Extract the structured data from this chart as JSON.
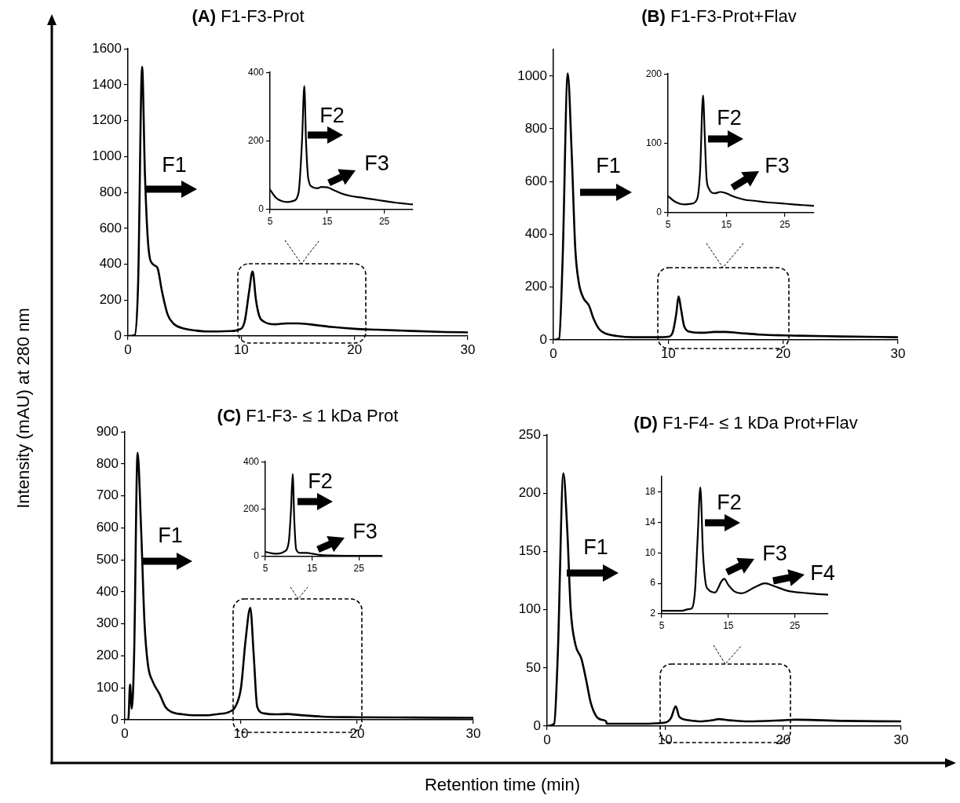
{
  "chart_data": [
    {
      "type": "line",
      "title": "(A) F1-F3-Prot",
      "xlabel": "Retention time (min)",
      "ylabel": "Intensity (mAU) at 280 nm",
      "marker": "none",
      "line_style": "solid",
      "xlim": [
        0,
        30
      ],
      "xticks": [
        0,
        10,
        20,
        30
      ],
      "ylim": [
        0,
        1600
      ],
      "yticks": [
        0,
        200,
        400,
        600,
        800,
        1000,
        1200,
        1400,
        1600
      ],
      "annotations": [
        "F1"
      ],
      "series": [
        {
          "color": "#000000",
          "x": [
            0,
            0.6,
            0.9,
            1.25,
            1.5,
            1.8,
            2.2,
            2.6,
            3,
            3.5,
            4,
            5,
            6,
            7,
            8,
            9,
            9.8,
            10.3,
            10.7,
            11,
            11.3,
            11.6,
            12,
            13,
            14,
            15,
            16,
            18,
            20,
            22,
            25,
            28,
            30
          ],
          "values": [
            0,
            5,
            300,
            1500,
            900,
            500,
            400,
            380,
            250,
            120,
            70,
            40,
            30,
            25,
            25,
            27,
            35,
            80,
            250,
            360,
            200,
            110,
            80,
            65,
            70,
            70,
            65,
            50,
            40,
            35,
            28,
            22,
            20
          ]
        }
      ]
    },
    {
      "type": "line",
      "marker": "none",
      "line_style": "solid",
      "xlim": [
        5,
        30
      ],
      "xticks": [
        5,
        15,
        25
      ],
      "ylim": [
        0,
        400
      ],
      "yticks": [
        0,
        200,
        400
      ],
      "annotations": [
        "F2",
        "F3"
      ],
      "series": [
        {
          "color": "#000000",
          "x": [
            5,
            6,
            7,
            8,
            9,
            10,
            10.6,
            11,
            11.3,
            11.7,
            12.5,
            13.3,
            14,
            15,
            16,
            17.5,
            19,
            21,
            23,
            25,
            27,
            30
          ],
          "values": [
            58,
            35,
            25,
            22,
            25,
            50,
            200,
            360,
            200,
            90,
            65,
            62,
            66,
            65,
            58,
            47,
            40,
            35,
            30,
            25,
            20,
            15
          ]
        }
      ]
    },
    {
      "type": "line",
      "title": "(B) F1-F3-Prot+Flav",
      "marker": "none",
      "line_style": "solid",
      "xlim": [
        0,
        30
      ],
      "xticks": [
        0,
        10,
        20,
        30
      ],
      "ylim": [
        0,
        1100
      ],
      "yticks": [
        0,
        200,
        400,
        600,
        800,
        1000
      ],
      "annotations": [
        "F1"
      ],
      "series": [
        {
          "color": "#000000",
          "x": [
            0,
            0.5,
            0.8,
            1.25,
            1.6,
            1.9,
            2.2,
            2.6,
            3.1,
            3.5,
            4,
            4.5,
            5.5,
            7,
            9,
            10,
            10.4,
            10.7,
            10.9,
            11.1,
            11.4,
            12,
            13,
            14,
            15,
            16,
            18,
            20,
            25,
            30
          ],
          "values": [
            0,
            5,
            300,
            1010,
            700,
            350,
            220,
            160,
            130,
            80,
            40,
            25,
            15,
            10,
            10,
            12,
            30,
            100,
            165,
            120,
            50,
            30,
            27,
            30,
            30,
            27,
            20,
            17,
            13,
            10
          ]
        }
      ]
    },
    {
      "type": "line",
      "marker": "none",
      "line_style": "solid",
      "xlim": [
        5,
        30
      ],
      "xticks": [
        5,
        15,
        25
      ],
      "ylim": [
        0,
        200
      ],
      "yticks": [
        0,
        100,
        200
      ],
      "annotations": [
        "F2",
        "F3"
      ],
      "series": [
        {
          "color": "#000000",
          "x": [
            5,
            6,
            7,
            8,
            9,
            10,
            10.5,
            11,
            11.3,
            11.6,
            12,
            13,
            14,
            15,
            16,
            18,
            20,
            22,
            25,
            28,
            30
          ],
          "values": [
            24,
            17,
            13,
            12,
            13,
            20,
            60,
            169,
            110,
            50,
            35,
            28,
            30,
            28,
            24,
            19,
            17,
            15,
            13,
            11,
            10
          ]
        }
      ]
    },
    {
      "type": "line",
      "title": "(C) F1-F3- ≤ 1 kDa Prot",
      "marker": "none",
      "line_style": "solid",
      "xlim": [
        0,
        30
      ],
      "xticks": [
        0,
        10,
        20,
        30
      ],
      "ylim": [
        0,
        900
      ],
      "yticks": [
        0,
        100,
        200,
        300,
        400,
        500,
        600,
        700,
        800,
        900
      ],
      "annotations": [
        "F1"
      ],
      "series": [
        {
          "color": "#000000",
          "x": [
            0,
            0.3,
            0.45,
            0.6,
            0.8,
            1.1,
            1.4,
            1.7,
            2,
            2.4,
            3,
            3.5,
            4,
            5,
            6,
            7,
            8,
            9,
            9.5,
            10,
            10.4,
            10.8,
            11.1,
            11.4,
            12,
            13,
            14,
            15,
            17,
            20,
            25,
            30
          ],
          "values": [
            0,
            0,
            110,
            35,
            200,
            835,
            600,
            300,
            170,
            120,
            80,
            40,
            25,
            17,
            14,
            14,
            18,
            25,
            40,
            100,
            250,
            350,
            200,
            40,
            20,
            17,
            18,
            15,
            10,
            8,
            7,
            6
          ]
        }
      ]
    },
    {
      "type": "line",
      "marker": "none",
      "line_style": "solid",
      "xlim": [
        5,
        30
      ],
      "xticks": [
        5,
        15,
        25
      ],
      "ylim": [
        0,
        400
      ],
      "yticks": [
        0,
        200,
        400
      ],
      "annotations": [
        "F2",
        "F3"
      ],
      "series": [
        {
          "color": "#000000",
          "x": [
            5,
            6,
            7,
            8,
            9,
            10,
            10.5,
            10.85,
            11.2,
            11.6,
            12.5,
            14,
            15,
            17,
            20,
            25,
            30
          ],
          "values": [
            20,
            15,
            12,
            13,
            20,
            60,
            200,
            348,
            150,
            30,
            15,
            15,
            12,
            6,
            4,
            3,
            3
          ]
        }
      ]
    },
    {
      "type": "line",
      "title": "(D) F1-F4- ≤ 1 kDa Prot+Flav",
      "marker": "none",
      "line_style": "solid",
      "xlim": [
        0,
        30
      ],
      "xticks": [
        0,
        10,
        20,
        30
      ],
      "ylim": [
        0,
        250
      ],
      "yticks": [
        0,
        50,
        100,
        150,
        200,
        250
      ],
      "annotations": [
        "F1"
      ],
      "series": [
        {
          "color": "#000000",
          "x": [
            0,
            0.6,
            0.9,
            1.38,
            1.7,
            2,
            2.4,
            2.9,
            3.3,
            3.7,
            4.2,
            4.8,
            5,
            5.05,
            8,
            10,
            10.5,
            10.9,
            11.2,
            12,
            13,
            14,
            14.5,
            15.5,
            17,
            20,
            21,
            25,
            30
          ],
          "values": [
            0,
            2,
            60,
            217,
            170,
            100,
            70,
            58,
            40,
            20,
            8,
            5,
            4,
            2,
            2,
            3,
            7,
            17,
            8,
            5,
            4,
            5,
            6,
            5,
            4,
            5,
            5.5,
            4.5,
            4
          ]
        }
      ]
    },
    {
      "type": "line",
      "marker": "none",
      "line_style": "solid",
      "xlim": [
        5,
        30
      ],
      "xticks": [
        5,
        15,
        25
      ],
      "ylim": [
        2,
        20
      ],
      "yticks": [
        2,
        6,
        10,
        14,
        18
      ],
      "annotations": [
        "F2",
        "F3",
        "F4"
      ],
      "series": [
        {
          "color": "#000000",
          "x": [
            5,
            8,
            9,
            9.5,
            10,
            10.4,
            10.8,
            11.2,
            11.6,
            12,
            13,
            14,
            14.4,
            15,
            16,
            17,
            19,
            20.5,
            22,
            24,
            27,
            30
          ],
          "values": [
            2.4,
            2.4,
            2.6,
            2.7,
            5,
            12,
            18.6,
            10,
            6,
            5.2,
            4.8,
            6.3,
            6.6,
            5.8,
            4.9,
            4.7,
            5.5,
            6,
            5.6,
            5,
            4.7,
            4.5
          ]
        }
      ]
    }
  ]
}
